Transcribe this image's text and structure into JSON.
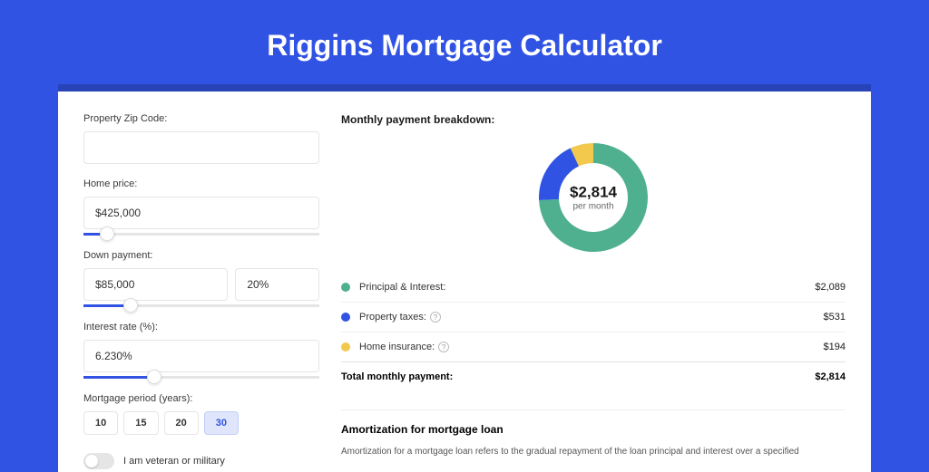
{
  "title": "Riggins Mortgage Calculator",
  "colors": {
    "page_bg": "#3053e3",
    "accent_bg": "#2843b8",
    "card_bg": "#ffffff",
    "slider_fill": "#3053e3",
    "border": "#e5e5e5"
  },
  "form": {
    "zip": {
      "label": "Property Zip Code:",
      "value": ""
    },
    "home_price": {
      "label": "Home price:",
      "value": "$425,000",
      "slider_pct": 10
    },
    "down_payment": {
      "label": "Down payment:",
      "value": "$85,000",
      "pct": "20%",
      "slider_pct": 20
    },
    "interest_rate": {
      "label": "Interest rate (%):",
      "value": "6.230%",
      "slider_pct": 30
    },
    "period": {
      "label": "Mortgage period (years):",
      "options": [
        "10",
        "15",
        "20",
        "30"
      ],
      "active": "30"
    },
    "veteran": {
      "label": "I am veteran or military",
      "checked": false
    }
  },
  "breakdown": {
    "title": "Monthly payment breakdown:",
    "donut": {
      "value": "$2,814",
      "sub": "per month",
      "segments": [
        {
          "key": "pi",
          "pct": 74.2,
          "color": "#4fb08f"
        },
        {
          "key": "tax",
          "pct": 18.9,
          "color": "#3053e3"
        },
        {
          "key": "ins",
          "pct": 6.9,
          "color": "#f2c94c"
        }
      ]
    },
    "items": [
      {
        "label": "Principal & Interest:",
        "value": "$2,089",
        "color": "#4fb08f",
        "info": false
      },
      {
        "label": "Property taxes:",
        "value": "$531",
        "color": "#3053e3",
        "info": true
      },
      {
        "label": "Home insurance:",
        "value": "$194",
        "color": "#f2c94c",
        "info": true
      }
    ],
    "total": {
      "label": "Total monthly payment:",
      "value": "$2,814"
    }
  },
  "amortization": {
    "title": "Amortization for mortgage loan",
    "text": "Amortization for a mortgage loan refers to the gradual repayment of the loan principal and interest over a specified"
  }
}
